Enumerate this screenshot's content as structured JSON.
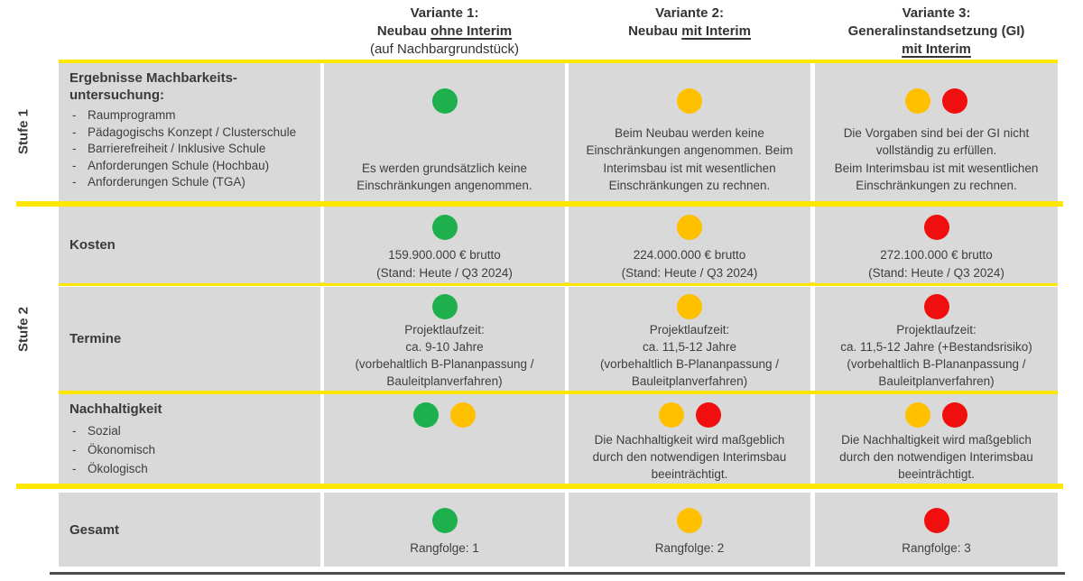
{
  "colors": {
    "green": "#1DB04C",
    "yellow": "#FFC000",
    "red": "#F10E0E",
    "line_yellow": "#FFE600",
    "cell_bg": "#D9D9D9"
  },
  "stages": {
    "stufe1": "Stufe 1",
    "stufe2": "Stufe 2"
  },
  "header": {
    "v1": {
      "line1": "Variante 1:",
      "line2_plain": "Neubau ",
      "line2_underline": "ohne Interim",
      "line3": "(auf Nachbargrundstück)"
    },
    "v2": {
      "line1": "Variante 2:",
      "line2_plain": "Neubau ",
      "line2_underline": "mit Interim"
    },
    "v3": {
      "line1": "Variante 3:",
      "line2": "Generalinstandsetzung (GI)",
      "line3_underline": "mit Interim"
    }
  },
  "rows": {
    "stufe1": {
      "label_title": "Ergebnisse Machbarkeits-\nuntersuchung:",
      "items": [
        "Raumprogramm",
        "Pädagogischs Konzept / Clusterschule",
        "Barrierefreiheit / Inklusive Schule",
        "Anforderungen Schule (Hochbau)",
        "Anforderungen Schule (TGA)"
      ],
      "v1": {
        "dots": [
          "green"
        ],
        "text": "Es werden grundsätzlich keine\nEinschränkungen angenommen."
      },
      "v2": {
        "dots": [
          "yellow"
        ],
        "text": "Beim Neubau werden keine\nEinschränkungen angenommen. Beim\nInterimsbau ist mit wesentlichen\nEinschränkungen zu rechnen."
      },
      "v3": {
        "dots": [
          "yellow",
          "red"
        ],
        "text": "Die Vorgaben sind bei der GI nicht\nvollständig zu erfüllen.\nBeim Interimsbau ist mit wesentlichen\nEinschränkungen zu rechnen."
      }
    },
    "kosten": {
      "label": "Kosten",
      "v1": {
        "dots": [
          "green"
        ],
        "text": "159.900.000 € brutto\n(Stand: Heute / Q3 2024)"
      },
      "v2": {
        "dots": [
          "yellow"
        ],
        "text": "224.000.000 € brutto\n(Stand: Heute / Q3 2024)"
      },
      "v3": {
        "dots": [
          "red"
        ],
        "text": "272.100.000 € brutto\n(Stand: Heute / Q3 2024)"
      }
    },
    "termine": {
      "label": "Termine",
      "v1": {
        "dots": [
          "green"
        ],
        "text": "Projektlaufzeit:\nca. 9-10 Jahre\n(vorbehaltlich B-Plananpassung /\nBauleitplanverfahren)"
      },
      "v2": {
        "dots": [
          "yellow"
        ],
        "text": "Projektlaufzeit:\nca. 11,5-12 Jahre\n(vorbehaltlich B-Plananpassung /\nBauleitplanverfahren)"
      },
      "v3": {
        "dots": [
          "red"
        ],
        "text": "Projektlaufzeit:\nca. 11,5-12 Jahre (+Bestandsrisiko)\n(vorbehaltlich B-Plananpassung /\nBauleitplanverfahren)"
      }
    },
    "nachhaltigkeit": {
      "label_title": "Nachhaltigkeit",
      "items": [
        "Sozial",
        "Ökonomisch",
        "Ökologisch"
      ],
      "v1": {
        "dots": [
          "green",
          "yellow"
        ],
        "text": ""
      },
      "v2": {
        "dots": [
          "yellow",
          "red"
        ],
        "text": "Die Nachhaltigkeit wird maßgeblich\ndurch den notwendigen Interimsbau\nbeeinträchtigt."
      },
      "v3": {
        "dots": [
          "yellow",
          "red"
        ],
        "text": "Die Nachhaltigkeit wird maßgeblich\ndurch den notwendigen Interimsbau\nbeeinträchtigt."
      }
    },
    "gesamt": {
      "label": "Gesamt",
      "v1": {
        "dots": [
          "green"
        ],
        "text": "Rangfolge: 1"
      },
      "v2": {
        "dots": [
          "yellow"
        ],
        "text": "Rangfolge: 2"
      },
      "v3": {
        "dots": [
          "red"
        ],
        "text": "Rangfolge: 3"
      }
    }
  }
}
